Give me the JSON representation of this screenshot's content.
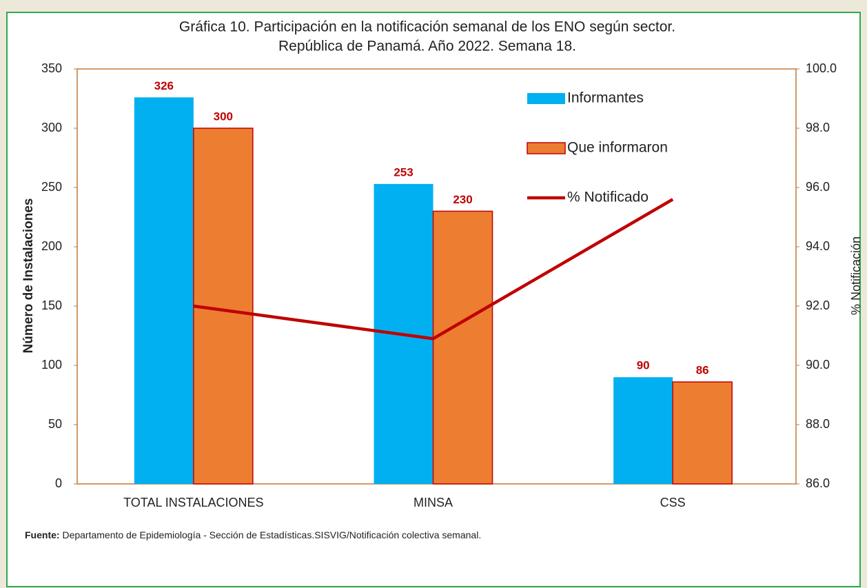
{
  "chart_data": {
    "type": "bar",
    "title": "Gráfica 10. Participación en la notificación semanal  de los ENO según sector.",
    "subtitle": "República de Panamá. Año 2022. Semana 18.",
    "categories": [
      "TOTAL INSTALACIONES",
      "MINSA",
      "CSS"
    ],
    "series": [
      {
        "name": "Informantes",
        "color": "#00b0f0",
        "values": [
          326,
          253,
          90
        ]
      },
      {
        "name": "Que informaron",
        "color": "#ed7d31",
        "values": [
          300,
          230,
          86
        ]
      },
      {
        "name": "% Notificado",
        "color": "#c00000",
        "type": "line",
        "axis": "y2",
        "values": [
          92.0,
          90.9,
          95.6
        ]
      }
    ],
    "ylabel": "Número de Instalaciones",
    "y2label": "% Notificación",
    "ylim": [
      0,
      350
    ],
    "yticks": [
      0,
      50,
      100,
      150,
      200,
      250,
      300,
      350
    ],
    "y2lim": [
      86,
      100
    ],
    "y2ticks": [
      {
        "value": 86,
        "label": "86.0"
      },
      {
        "value": 88,
        "label": "88.0"
      },
      {
        "value": 90,
        "label": "90.0"
      },
      {
        "value": 92,
        "label": "92.0"
      },
      {
        "value": 94,
        "label": "94.0"
      },
      {
        "value": 96,
        "label": "96.0"
      },
      {
        "value": 98,
        "label": "98.0"
      },
      {
        "value": 100,
        "label": "100.0"
      }
    ],
    "legend": "upper right",
    "source_label": "Fuente:",
    "source": "Departamento de Epidemiología - Sección de Estadísticas.SISVIG/Notificación colectiva semanal."
  }
}
